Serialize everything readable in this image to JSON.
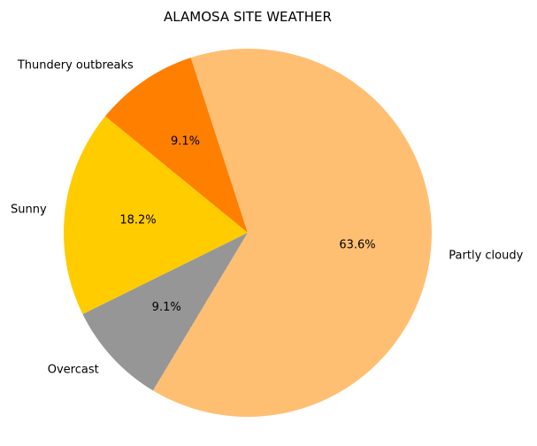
{
  "chart_data": {
    "type": "pie",
    "title": "ALAMOSA SITE WEATHER",
    "start_angle_deg": 108,
    "direction": "counterclockwise",
    "slices": [
      {
        "label": "Thundery outbreaks",
        "value": 9.1,
        "pct_label": "9.1%",
        "color": "#ff7f00"
      },
      {
        "label": "Sunny",
        "value": 18.2,
        "pct_label": "18.2%",
        "color": "#ffcc00"
      },
      {
        "label": "Overcast",
        "value": 9.1,
        "pct_label": "9.1%",
        "color": "#969696"
      },
      {
        "label": "Partly cloudy",
        "value": 63.6,
        "pct_label": "63.6%",
        "color": "#ffbf73"
      }
    ]
  }
}
